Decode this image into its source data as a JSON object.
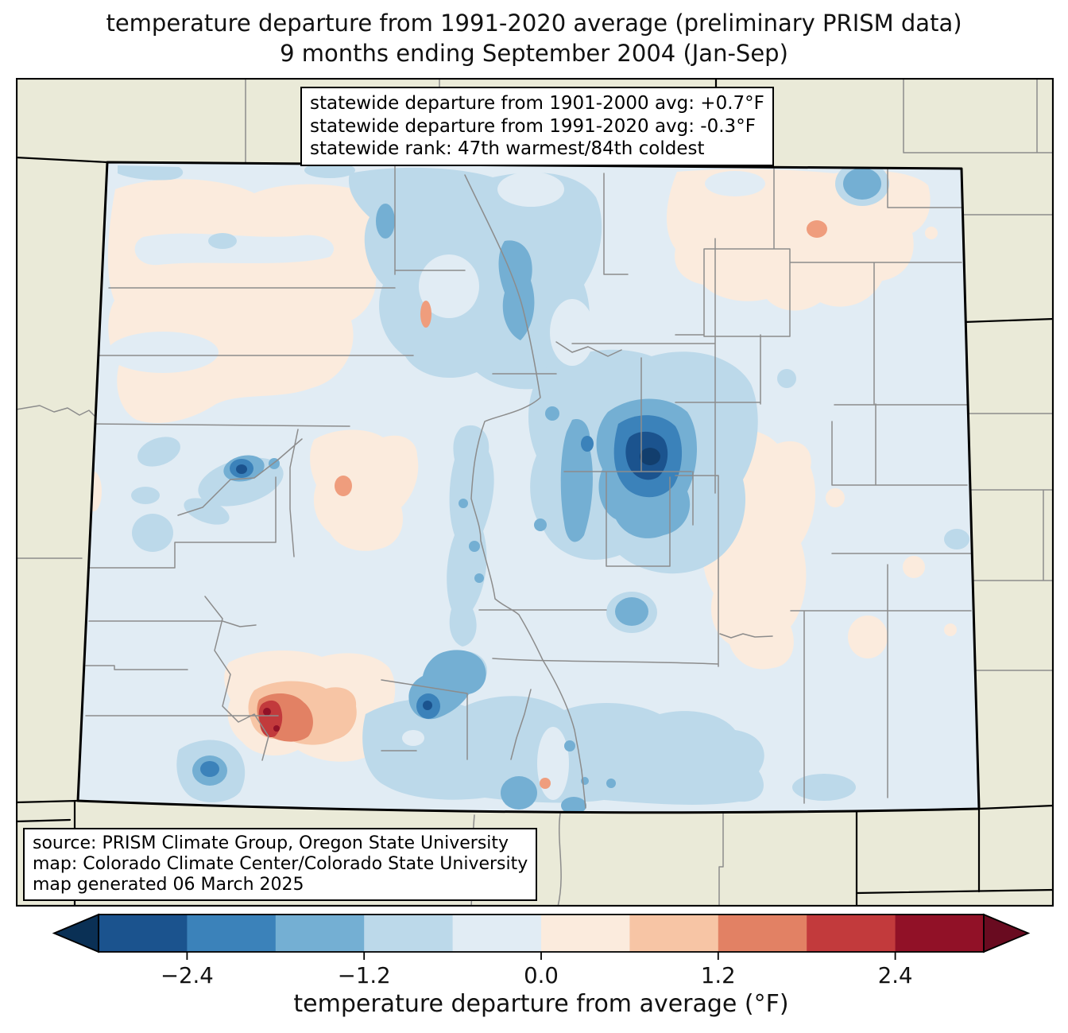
{
  "title": {
    "line1": "temperature departure from 1991-2020 average (preliminary PRISM data)",
    "line2": "9 months ending September 2004 (Jan-Sep)"
  },
  "stats_box": {
    "lines": [
      "statewide departure from 1901-2000 avg: +0.7°F",
      "statewide departure from 1991-2020 avg: -0.3°F",
      "statewide rank: 47th warmest/84th coldest"
    ]
  },
  "source_box": {
    "lines": [
      "source: PRISM Climate Group, Oregon State University",
      "map: Colorado Climate Center/Colorado State University",
      "map generated 06 March 2025"
    ]
  },
  "colorbar": {
    "label": "temperature departure from average (°F)",
    "vmin": -3.0,
    "vmax": 3.0,
    "ticks": [
      {
        "value": -2.4,
        "label": "−2.4"
      },
      {
        "value": -1.2,
        "label": "−1.2"
      },
      {
        "value": 0.0,
        "label": "0.0"
      },
      {
        "value": 1.2,
        "label": "1.2"
      },
      {
        "value": 2.4,
        "label": "2.4"
      }
    ],
    "segment_colors": [
      "#1b538e",
      "#3b82ba",
      "#74afd3",
      "#bcd9ea",
      "#e1ecf4",
      "#fbebdd",
      "#f7c5a5",
      "#e28164",
      "#c23a3c",
      "#911127"
    ],
    "extend_low": "#0a3055",
    "extend_high": "#690b20"
  },
  "map": {
    "region_label": "Colorado",
    "palette": {
      "surround": "#eaead8",
      "stateline": "#000000",
      "county": "#8c8c8c",
      "base": "#e1ecf4",
      "cool1": "#bcd9ea",
      "cool2": "#74afd3",
      "cool3": "#3b82ba",
      "cool4": "#1b538e",
      "cool5": "#123e6d",
      "warm1": "#fbebdd",
      "warm2": "#f7c5a5",
      "warm2b": "#ef9d7d",
      "warm3": "#e28164",
      "warm4": "#c23a3c",
      "warm5": "#911127"
    }
  }
}
